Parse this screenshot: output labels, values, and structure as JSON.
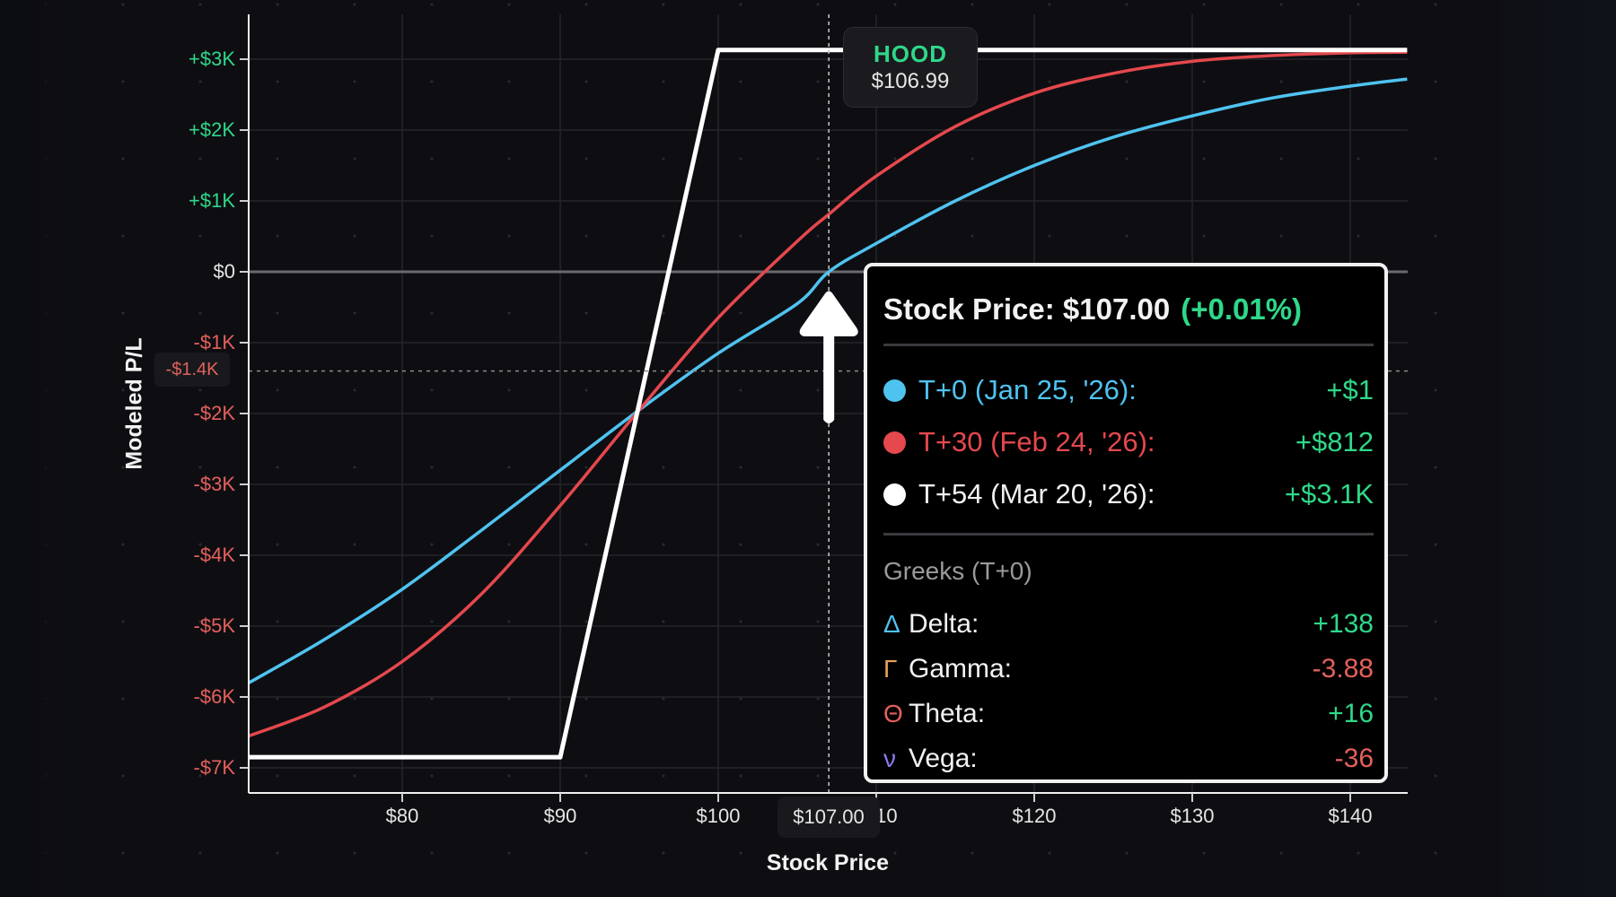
{
  "chart_data": {
    "type": "line",
    "title": "",
    "xlabel": "Stock Price",
    "ylabel": "Modeled P/L",
    "xlim": [
      70.3,
      143.6
    ],
    "ylim": [
      -7350,
      3630
    ],
    "grid": true,
    "x_ticks": [
      "$80",
      "$90",
      "$100",
      "$110",
      "$120",
      "$130",
      "$140"
    ],
    "x_tick_values": [
      80,
      90,
      100,
      110,
      120,
      130,
      140
    ],
    "y_ticks": [
      "+$3K",
      "+$2K",
      "+$1K",
      "$0",
      "-$1K",
      "-$2K",
      "-$3K",
      "-$4K",
      "-$5K",
      "-$6K",
      "-$7K"
    ],
    "y_tick_values": [
      3000,
      2000,
      1000,
      0,
      -1000,
      -2000,
      -3000,
      -4000,
      -5000,
      -6000,
      -7000
    ],
    "series": [
      {
        "name": "T+0 (Jan 25, '26)",
        "color": "#4fc3f0",
        "x": [
          70.3,
          75,
          80,
          85,
          90,
          95,
          100,
          105,
          107,
          110,
          115,
          120,
          125,
          130,
          135,
          140,
          143.6
        ],
        "values": [
          -5800,
          -5200,
          -4480,
          -3650,
          -2800,
          -1950,
          -1150,
          -450,
          0,
          400,
          1000,
          1500,
          1900,
          2200,
          2450,
          2620,
          2720
        ]
      },
      {
        "name": "T+30 (Feb 24, '26)",
        "color": "#e5484d",
        "x": [
          70.3,
          75,
          80,
          85,
          90,
          95,
          100,
          105,
          107,
          110,
          115,
          120,
          125,
          130,
          135,
          140,
          143.6
        ],
        "values": [
          -6550,
          -6150,
          -5500,
          -4550,
          -3300,
          -1950,
          -650,
          430,
          812,
          1350,
          2050,
          2520,
          2800,
          2970,
          3050,
          3090,
          3100
        ]
      },
      {
        "name": "T+54 (Mar 20, '26)",
        "color": "#ffffff",
        "x": [
          70.3,
          90,
          100,
          143.6
        ],
        "values": [
          -6850,
          -6850,
          3130,
          3130
        ]
      }
    ],
    "annotations": [
      {
        "type": "crosshair",
        "x": 107.0,
        "y": -1400
      },
      {
        "type": "marker",
        "label": "HOOD",
        "value": "$106.99"
      }
    ]
  },
  "axis": {
    "y_title": "Modeled P/L",
    "x_title": "Stock Price",
    "cursor_y_label": "-$1.4K",
    "cursor_x_label": "$107.00"
  },
  "ticker": {
    "symbol": "HOOD",
    "price": "$106.99"
  },
  "tooltip": {
    "title_prefix": "Stock Price: $107.00",
    "title_change": "(+0.01%)",
    "series": [
      {
        "label": "T+0 (Jan 25, '26):",
        "value": "+$1",
        "color": "#4fc3f0",
        "text_color": "#4fc3f0"
      },
      {
        "label": "T+30 (Feb 24, '26):",
        "value": "+$812",
        "color": "#e5484d",
        "text_color": "#e5484d"
      },
      {
        "label": "T+54 (Mar 20, '26):",
        "value": "+$3.1K",
        "color": "#ffffff",
        "text_color": "#f2f2f2"
      }
    ],
    "greeks_title": "Greeks (T+0)",
    "greeks": [
      {
        "symbol": "Δ",
        "name": "Delta:",
        "value": "+138",
        "symbol_color": "#4fc3f0",
        "sign": "pos"
      },
      {
        "symbol": "Γ",
        "name": "Gamma:",
        "value": "-3.88",
        "symbol_color": "#e8a25a",
        "sign": "neg"
      },
      {
        "symbol": "Θ",
        "name": "Theta:",
        "value": "+16",
        "symbol_color": "#e4605c",
        "sign": "pos"
      },
      {
        "symbol": "ν",
        "name": "Vega:",
        "value": "-36",
        "symbol_color": "#8b7cf0",
        "sign": "neg"
      }
    ]
  },
  "colors": {
    "positive": "#2fd889",
    "negative": "#e4605c",
    "background": "#0e0e12"
  }
}
